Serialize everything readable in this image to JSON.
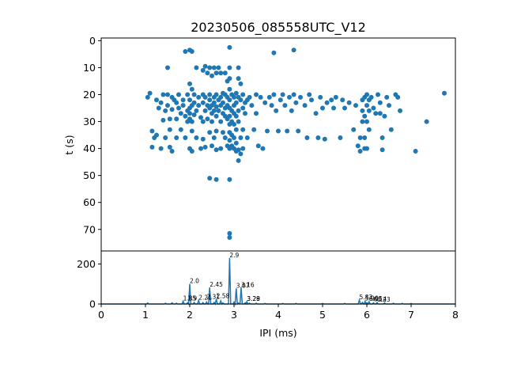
{
  "chart_data": [
    {
      "type": "scatter",
      "title": "20230506_085558UTC_V12",
      "ylabel": "t (s)",
      "xlim": [
        0,
        8
      ],
      "ylim": [
        78,
        -1
      ],
      "y_inverted": true,
      "yticks": [
        "0",
        "10",
        "20",
        "30",
        "40",
        "50",
        "60",
        "70"
      ],
      "color": "#1f77b4",
      "points": [
        [
          1.05,
          21.0
        ],
        [
          1.1,
          19.5
        ],
        [
          1.15,
          39.5
        ],
        [
          1.15,
          33.5
        ],
        [
          1.2,
          36.0
        ],
        [
          1.25,
          22.0
        ],
        [
          1.25,
          35.0
        ],
        [
          1.3,
          25.0
        ],
        [
          1.35,
          40.0
        ],
        [
          1.35,
          23.0
        ],
        [
          1.4,
          29.5
        ],
        [
          1.4,
          20.0
        ],
        [
          1.45,
          26.0
        ],
        [
          1.45,
          36.0
        ],
        [
          1.5,
          10.0
        ],
        [
          1.5,
          20.0
        ],
        [
          1.5,
          24.0
        ],
        [
          1.55,
          29.0
        ],
        [
          1.55,
          33.0
        ],
        [
          1.55,
          39.5
        ],
        [
          1.6,
          41.0
        ],
        [
          1.6,
          25.5
        ],
        [
          1.6,
          21.0
        ],
        [
          1.65,
          22.0
        ],
        [
          1.7,
          23.0
        ],
        [
          1.7,
          36.0
        ],
        [
          1.7,
          29.0
        ],
        [
          1.75,
          20.0
        ],
        [
          1.75,
          25.0
        ],
        [
          1.8,
          27.0
        ],
        [
          1.8,
          33.0
        ],
        [
          1.85,
          24.0
        ],
        [
          1.85,
          22.0
        ],
        [
          1.9,
          4.0
        ],
        [
          1.9,
          28.0
        ],
        [
          1.9,
          36.0
        ],
        [
          1.95,
          26.0
        ],
        [
          1.95,
          20.0
        ],
        [
          1.95,
          30.0
        ],
        [
          2.0,
          3.5
        ],
        [
          2.0,
          16.0
        ],
        [
          2.0,
          22.0
        ],
        [
          2.0,
          25.0
        ],
        [
          2.0,
          27.0
        ],
        [
          2.0,
          29.0
        ],
        [
          2.0,
          40.0
        ],
        [
          2.05,
          4.0
        ],
        [
          2.05,
          18.0
        ],
        [
          2.05,
          24.0
        ],
        [
          2.05,
          30.0
        ],
        [
          2.05,
          33.5
        ],
        [
          2.05,
          41.0
        ],
        [
          2.1,
          20.0
        ],
        [
          2.1,
          23.0
        ],
        [
          2.1,
          27.5
        ],
        [
          2.15,
          10.0
        ],
        [
          2.15,
          26.0
        ],
        [
          2.15,
          36.0
        ],
        [
          2.2,
          21.0
        ],
        [
          2.2,
          24.0
        ],
        [
          2.25,
          28.5
        ],
        [
          2.25,
          40.0
        ],
        [
          2.3,
          11.0
        ],
        [
          2.3,
          20.0
        ],
        [
          2.3,
          23.0
        ],
        [
          2.3,
          30.0
        ],
        [
          2.3,
          36.5
        ],
        [
          2.35,
          9.5
        ],
        [
          2.35,
          21.0
        ],
        [
          2.35,
          26.0
        ],
        [
          2.35,
          39.5
        ],
        [
          2.4,
          12.0
        ],
        [
          2.4,
          24.0
        ],
        [
          2.4,
          29.0
        ],
        [
          2.45,
          10.0
        ],
        [
          2.45,
          20.0
        ],
        [
          2.45,
          22.0
        ],
        [
          2.45,
          25.0
        ],
        [
          2.45,
          34.0
        ],
        [
          2.45,
          51.0
        ],
        [
          2.5,
          13.0
        ],
        [
          2.5,
          24.0
        ],
        [
          2.5,
          27.0
        ],
        [
          2.5,
          30.0
        ],
        [
          2.5,
          39.0
        ],
        [
          2.55,
          10.0
        ],
        [
          2.55,
          21.0
        ],
        [
          2.55,
          23.0
        ],
        [
          2.55,
          26.0
        ],
        [
          2.55,
          36.0
        ],
        [
          2.6,
          12.0
        ],
        [
          2.6,
          20.0
        ],
        [
          2.6,
          24.5
        ],
        [
          2.6,
          28.0
        ],
        [
          2.6,
          33.5
        ],
        [
          2.6,
          40.5
        ],
        [
          2.6,
          51.5
        ],
        [
          2.65,
          10.0
        ],
        [
          2.65,
          22.0
        ],
        [
          2.65,
          26.0
        ],
        [
          2.7,
          12.0
        ],
        [
          2.7,
          21.0
        ],
        [
          2.7,
          24.0
        ],
        [
          2.7,
          30.0
        ],
        [
          2.7,
          40.0
        ],
        [
          2.75,
          19.5
        ],
        [
          2.75,
          23.0
        ],
        [
          2.75,
          27.0
        ],
        [
          2.75,
          34.0
        ],
        [
          2.8,
          12.0
        ],
        [
          2.8,
          20.0
        ],
        [
          2.8,
          25.0
        ],
        [
          2.8,
          28.0
        ],
        [
          2.8,
          36.0
        ],
        [
          2.85,
          15.0
        ],
        [
          2.85,
          21.0
        ],
        [
          2.85,
          24.0
        ],
        [
          2.85,
          29.0
        ],
        [
          2.85,
          39.0
        ],
        [
          2.9,
          2.5
        ],
        [
          2.9,
          10.0
        ],
        [
          2.9,
          14.0
        ],
        [
          2.9,
          18.0
        ],
        [
          2.9,
          22.0
        ],
        [
          2.9,
          25.0
        ],
        [
          2.9,
          28.0
        ],
        [
          2.9,
          31.0
        ],
        [
          2.9,
          34.0
        ],
        [
          2.9,
          37.0
        ],
        [
          2.9,
          40.0
        ],
        [
          2.9,
          51.5
        ],
        [
          2.9,
          71.5
        ],
        [
          2.9,
          73.0
        ],
        [
          2.95,
          20.0
        ],
        [
          2.95,
          26.0
        ],
        [
          2.95,
          30.0
        ],
        [
          2.95,
          35.0
        ],
        [
          2.95,
          39.0
        ],
        [
          3.0,
          21.0
        ],
        [
          3.0,
          24.0
        ],
        [
          3.0,
          27.0
        ],
        [
          3.0,
          31.0
        ],
        [
          3.0,
          36.0
        ],
        [
          3.0,
          40.0
        ],
        [
          3.05,
          19.5
        ],
        [
          3.05,
          23.0
        ],
        [
          3.05,
          28.0
        ],
        [
          3.05,
          33.0
        ],
        [
          3.05,
          38.0
        ],
        [
          3.05,
          41.0
        ],
        [
          3.1,
          10.0
        ],
        [
          3.1,
          14.0
        ],
        [
          3.1,
          21.0
        ],
        [
          3.1,
          26.0
        ],
        [
          3.1,
          30.0
        ],
        [
          3.1,
          40.5
        ],
        [
          3.1,
          44.5
        ],
        [
          3.15,
          16.0
        ],
        [
          3.15,
          22.0
        ],
        [
          3.15,
          36.0
        ],
        [
          3.15,
          42.0
        ],
        [
          3.2,
          20.0
        ],
        [
          3.2,
          25.0
        ],
        [
          3.2,
          33.0
        ],
        [
          3.2,
          40.0
        ],
        [
          3.25,
          23.0
        ],
        [
          3.25,
          27.0
        ],
        [
          3.3,
          22.0
        ],
        [
          3.3,
          36.0
        ],
        [
          3.35,
          21.0
        ],
        [
          3.4,
          24.0
        ],
        [
          3.45,
          33.0
        ],
        [
          3.5,
          20.0
        ],
        [
          3.5,
          27.0
        ],
        [
          3.55,
          39.0
        ],
        [
          3.6,
          21.0
        ],
        [
          3.65,
          40.0
        ],
        [
          3.7,
          23.0
        ],
        [
          3.75,
          33.5
        ],
        [
          3.8,
          21.0
        ],
        [
          3.85,
          24.0
        ],
        [
          3.9,
          4.5
        ],
        [
          3.9,
          20.0
        ],
        [
          3.95,
          26.0
        ],
        [
          4.0,
          33.5
        ],
        [
          4.05,
          22.0
        ],
        [
          4.1,
          20.0
        ],
        [
          4.15,
          24.0
        ],
        [
          4.2,
          33.5
        ],
        [
          4.25,
          21.0
        ],
        [
          4.3,
          26.0
        ],
        [
          4.35,
          3.5
        ],
        [
          4.35,
          20.0
        ],
        [
          4.4,
          23.0
        ],
        [
          4.45,
          33.5
        ],
        [
          4.5,
          21.0
        ],
        [
          4.6,
          24.0
        ],
        [
          4.65,
          36.0
        ],
        [
          4.7,
          20.0
        ],
        [
          4.75,
          22.0
        ],
        [
          4.85,
          27.0
        ],
        [
          4.9,
          36.0
        ],
        [
          4.95,
          21.0
        ],
        [
          5.0,
          25.0
        ],
        [
          5.05,
          36.5
        ],
        [
          5.1,
          23.0
        ],
        [
          5.2,
          22.0
        ],
        [
          5.25,
          25.0
        ],
        [
          5.3,
          21.0
        ],
        [
          5.4,
          36.0
        ],
        [
          5.45,
          22.0
        ],
        [
          5.5,
          25.0
        ],
        [
          5.6,
          23.0
        ],
        [
          5.7,
          33.0
        ],
        [
          5.75,
          24.0
        ],
        [
          5.8,
          39.0
        ],
        [
          5.85,
          41.0
        ],
        [
          5.85,
          36.0
        ],
        [
          5.9,
          22.0
        ],
        [
          5.9,
          26.0
        ],
        [
          5.9,
          30.0
        ],
        [
          5.95,
          21.0
        ],
        [
          5.95,
          28.0
        ],
        [
          5.95,
          36.0
        ],
        [
          5.95,
          40.0
        ],
        [
          6.0,
          20.0
        ],
        [
          6.0,
          24.0
        ],
        [
          6.0,
          30.0
        ],
        [
          6.0,
          40.0
        ],
        [
          6.05,
          22.0
        ],
        [
          6.05,
          26.0
        ],
        [
          6.05,
          33.0
        ],
        [
          6.1,
          21.0
        ],
        [
          6.15,
          25.0
        ],
        [
          6.2,
          27.0
        ],
        [
          6.25,
          20.0
        ],
        [
          6.3,
          23.0
        ],
        [
          6.3,
          27.0
        ],
        [
          6.35,
          36.0
        ],
        [
          6.35,
          40.5
        ],
        [
          6.4,
          28.0
        ],
        [
          6.45,
          21.0
        ],
        [
          6.5,
          24.0
        ],
        [
          6.55,
          33.0
        ],
        [
          6.65,
          20.0
        ],
        [
          6.7,
          21.0
        ],
        [
          6.75,
          26.0
        ],
        [
          7.1,
          41.0
        ],
        [
          7.35,
          30.0
        ],
        [
          7.75,
          19.5
        ]
      ]
    },
    {
      "type": "line",
      "xlabel": "IPI (ms)",
      "xlim": [
        0,
        8
      ],
      "ylim": [
        0,
        265
      ],
      "xticks": [
        "0",
        "1",
        "2",
        "3",
        "4",
        "5",
        "6",
        "7",
        "8"
      ],
      "yticks": [
        "0",
        "200"
      ],
      "color": "#1f77b4",
      "peaks": [
        [
          1.05,
          5
        ],
        [
          1.45,
          4
        ],
        [
          1.6,
          6
        ],
        [
          1.7,
          4
        ],
        [
          1.85,
          14
        ],
        [
          1.95,
          7
        ],
        [
          2.0,
          100
        ],
        [
          2.1,
          8
        ],
        [
          2.2,
          18
        ],
        [
          2.3,
          7
        ],
        [
          2.38,
          10
        ],
        [
          2.45,
          83
        ],
        [
          2.55,
          8
        ],
        [
          2.6,
          25
        ],
        [
          2.7,
          16
        ],
        [
          2.75,
          5
        ],
        [
          2.9,
          230
        ],
        [
          3.0,
          10
        ],
        [
          3.05,
          78
        ],
        [
          3.1,
          5
        ],
        [
          3.16,
          82
        ],
        [
          3.25,
          6
        ],
        [
          3.29,
          12
        ],
        [
          3.35,
          4
        ],
        [
          3.5,
          4
        ],
        [
          3.7,
          3
        ],
        [
          4.1,
          3
        ],
        [
          4.4,
          3
        ],
        [
          5.0,
          3
        ],
        [
          5.5,
          3
        ],
        [
          5.83,
          20
        ],
        [
          5.9,
          8
        ],
        [
          5.96,
          14
        ],
        [
          6.0,
          6
        ],
        [
          6.05,
          12
        ],
        [
          6.15,
          6
        ],
        [
          6.23,
          8
        ],
        [
          6.4,
          6
        ],
        [
          6.6,
          4
        ],
        [
          6.8,
          3
        ],
        [
          7.0,
          3
        ]
      ],
      "annotations": [
        {
          "x": 1.85,
          "y": 14,
          "label": "1.85"
        },
        {
          "x": 1.95,
          "y": 14,
          "label": "1.9"
        },
        {
          "x": 2.0,
          "y": 100,
          "label": "2.0"
        },
        {
          "x": 2.2,
          "y": 18,
          "label": "2.21"
        },
        {
          "x": 2.38,
          "y": 22,
          "label": "2.31"
        },
        {
          "x": 2.45,
          "y": 83,
          "label": "2.45"
        },
        {
          "x": 2.6,
          "y": 25,
          "label": "2.58"
        },
        {
          "x": 2.9,
          "y": 230,
          "label": "2.9"
        },
        {
          "x": 3.05,
          "y": 78,
          "label": "3.07"
        },
        {
          "x": 3.16,
          "y": 82,
          "label": "3.16"
        },
        {
          "x": 3.29,
          "y": 12,
          "label": "3.28"
        },
        {
          "x": 3.29,
          "y": 12,
          "label": "3.29"
        },
        {
          "x": 5.83,
          "y": 20,
          "label": "5.83"
        },
        {
          "x": 5.96,
          "y": 14,
          "label": "5.96"
        },
        {
          "x": 6.05,
          "y": 12,
          "label": "6.05"
        },
        {
          "x": 6.15,
          "y": 10,
          "label": "6.14"
        },
        {
          "x": 6.23,
          "y": 8,
          "label": "6.23"
        }
      ]
    }
  ]
}
